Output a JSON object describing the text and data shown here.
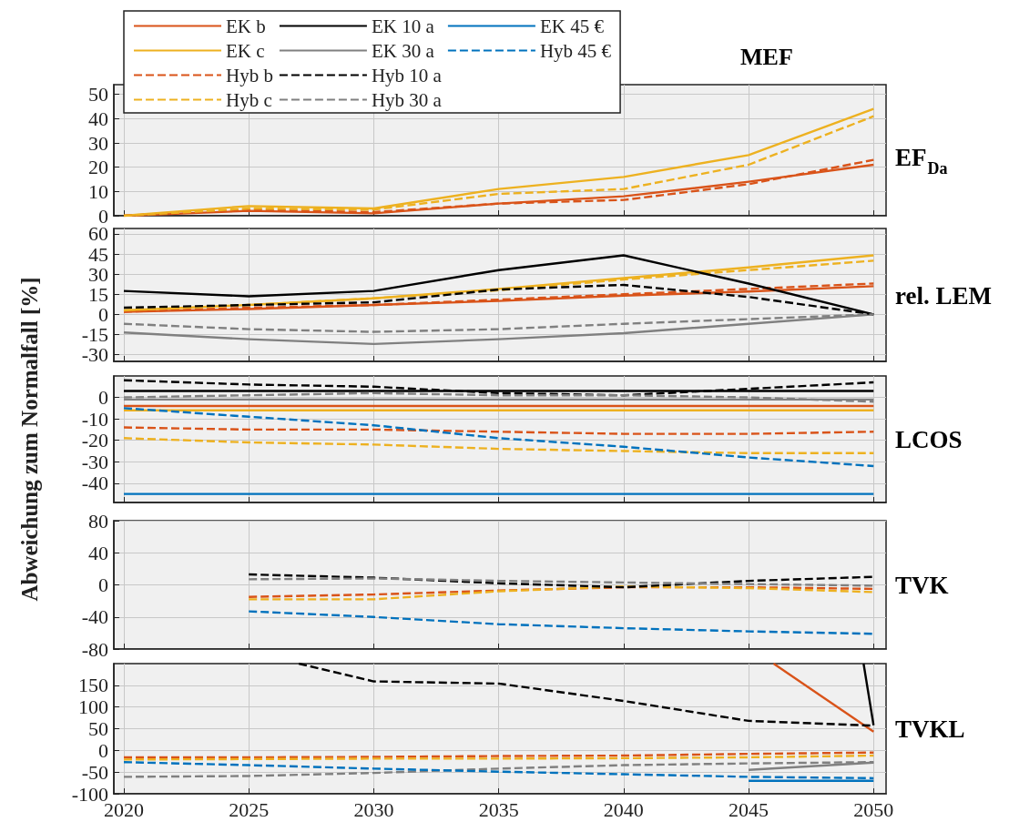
{
  "chart_data": [
    {
      "type": "line",
      "title": "EF$_{Da}$",
      "annotations": [
        "MEF"
      ],
      "x": [
        2020,
        2025,
        2030,
        2035,
        2040,
        2045,
        2050
      ],
      "xlim": [
        2019.6,
        2050.5
      ],
      "xticks": [
        2020,
        2025,
        2030,
        2035,
        2040,
        2045,
        2050
      ],
      "ylim": [
        0,
        54
      ],
      "yticks": [
        0,
        10,
        20,
        30,
        40,
        50
      ],
      "grid": true,
      "legend": "top left",
      "tick_labels": "y",
      "series": [
        {
          "name": "EK b",
          "color": "#d95319",
          "line_style": "solid",
          "values": [
            0,
            2,
            1,
            5,
            8,
            14,
            21
          ]
        },
        {
          "name": "EK c",
          "color": "#edb120",
          "line_style": "solid",
          "values": [
            0,
            4,
            3,
            11,
            16,
            25,
            44
          ]
        },
        {
          "name": "Hyb b",
          "color": "#d95319",
          "line_style": "dashed",
          "values": [
            0,
            2.5,
            1.5,
            5,
            6.5,
            13,
            23
          ]
        },
        {
          "name": "Hyb c",
          "color": "#edb120",
          "line_style": "dashed",
          "values": [
            0,
            3,
            2.5,
            9,
            11,
            21,
            41
          ]
        },
        {
          "name": "EK 10 a",
          "color": "#000000",
          "line_style": "solid",
          "values": [
            null,
            null,
            null,
            null,
            null,
            null,
            null
          ]
        },
        {
          "name": "EK 30 a",
          "color": "#808080",
          "line_style": "solid",
          "values": [
            null,
            null,
            null,
            null,
            null,
            null,
            null
          ]
        },
        {
          "name": "Hyb 10 a",
          "color": "#000000",
          "line_style": "dashed",
          "values": [
            null,
            null,
            null,
            null,
            null,
            null,
            null
          ]
        },
        {
          "name": "Hyb 30 a",
          "color": "#808080",
          "line_style": "dashed",
          "values": [
            null,
            null,
            null,
            null,
            null,
            null,
            null
          ]
        },
        {
          "name": "EK 45 €",
          "color": "#0072bd",
          "line_style": "solid",
          "values": [
            null,
            null,
            null,
            null,
            null,
            null,
            null
          ]
        },
        {
          "name": "Hyb 45 €",
          "color": "#0072bd",
          "line_style": "dashed",
          "values": [
            null,
            null,
            null,
            null,
            null,
            null,
            null
          ]
        }
      ]
    },
    {
      "type": "line",
      "title": "rel. LEM",
      "x": [
        2020,
        2025,
        2030,
        2035,
        2040,
        2045,
        2050
      ],
      "xlim": [
        2019.6,
        2050.5
      ],
      "xticks": [
        2020,
        2025,
        2030,
        2035,
        2040,
        2045,
        2050
      ],
      "ylim": [
        -35,
        64
      ],
      "yticks": [
        -30,
        -15,
        0,
        15,
        30,
        45,
        60
      ],
      "grid": true,
      "tick_labels": "y",
      "series": [
        {
          "color": "#d95319",
          "line_style": "solid",
          "values": [
            2,
            4,
            7,
            10,
            14,
            17,
            21
          ]
        },
        {
          "color": "#edb120",
          "line_style": "solid",
          "values": [
            3,
            7,
            12,
            19,
            27,
            35,
            44
          ]
        },
        {
          "color": "#d95319",
          "line_style": "dashed",
          "values": [
            2,
            5,
            7,
            11,
            15,
            19,
            23
          ]
        },
        {
          "color": "#edb120",
          "line_style": "dashed",
          "values": [
            3,
            7,
            12,
            18,
            26,
            33,
            40
          ]
        },
        {
          "color": "#000000",
          "line_style": "solid",
          "values": [
            17.5,
            13.5,
            17.5,
            33,
            44,
            23,
            0
          ]
        },
        {
          "color": "#808080",
          "line_style": "solid",
          "values": [
            -13.5,
            -18.5,
            -22,
            -18.5,
            -14,
            -7,
            0
          ]
        },
        {
          "color": "#000000",
          "line_style": "dashed",
          "values": [
            5,
            7,
            9,
            18.5,
            22,
            13,
            0
          ]
        },
        {
          "color": "#808080",
          "line_style": "dashed",
          "values": [
            -7,
            -11,
            -13,
            -11,
            -7,
            -3.5,
            0
          ]
        }
      ]
    },
    {
      "type": "line",
      "title": "LCOS",
      "ylabel": "Abweichung zum Normalfall [%]",
      "x": [
        2020,
        2025,
        2030,
        2035,
        2040,
        2045,
        2050
      ],
      "xlim": [
        2019.6,
        2050.5
      ],
      "xticks": [
        2020,
        2025,
        2030,
        2035,
        2040,
        2045,
        2050
      ],
      "ylim": [
        -49,
        10
      ],
      "yticks": [
        -40,
        -30,
        -20,
        -10,
        0
      ],
      "grid": true,
      "tick_labels": "y",
      "series": [
        {
          "color": "#d95319",
          "line_style": "solid",
          "values": [
            -4,
            -4,
            -4,
            -4,
            -4,
            -4,
            -4
          ]
        },
        {
          "color": "#edb120",
          "line_style": "solid",
          "values": [
            -6,
            -6,
            -6,
            -6,
            -6,
            -6,
            -6
          ]
        },
        {
          "color": "#d95319",
          "line_style": "dashed",
          "values": [
            -14,
            -15,
            -15,
            -16,
            -17,
            -17,
            -16
          ]
        },
        {
          "color": "#edb120",
          "line_style": "dashed",
          "values": [
            -19,
            -21,
            -22,
            -24,
            -25,
            -26,
            -26
          ]
        },
        {
          "color": "#000000",
          "line_style": "solid",
          "values": [
            3,
            3,
            3,
            3,
            3,
            3,
            3
          ]
        },
        {
          "color": "#808080",
          "line_style": "solid",
          "values": [
            -1,
            -1,
            -1,
            -1,
            -1,
            -1,
            -1
          ]
        },
        {
          "color": "#000000",
          "line_style": "dashed",
          "values": [
            8,
            6,
            5,
            2,
            1,
            4,
            7
          ]
        },
        {
          "color": "#808080",
          "line_style": "dashed",
          "values": [
            0,
            1,
            2,
            1,
            1,
            0,
            -2
          ]
        },
        {
          "color": "#0072bd",
          "line_style": "solid",
          "values": [
            -45,
            -45,
            -45,
            -45,
            -45,
            -45,
            -45
          ]
        },
        {
          "color": "#0072bd",
          "line_style": "dashed",
          "values": [
            -5,
            -9,
            -13,
            -19,
            -23,
            -28,
            -32
          ]
        }
      ]
    },
    {
      "type": "line",
      "title": "TVK",
      "x": [
        2025,
        2030,
        2035,
        2040,
        2045,
        2050
      ],
      "xlim": [
        2019.6,
        2050.5
      ],
      "xticks": [
        2020,
        2025,
        2030,
        2035,
        2040,
        2045,
        2050
      ],
      "ylim": [
        -80,
        80
      ],
      "yticks": [
        -80,
        -40,
        0,
        40,
        80
      ],
      "grid": true,
      "tick_labels": "y",
      "series": [
        {
          "color": "#d95319",
          "line_style": "dashed",
          "values": [
            -15,
            -12,
            -7,
            -3,
            -3,
            -5
          ]
        },
        {
          "color": "#edb120",
          "line_style": "dashed",
          "values": [
            -18,
            -18,
            -8,
            -2,
            -4,
            -9
          ]
        },
        {
          "color": "#000000",
          "line_style": "dashed",
          "values": [
            13,
            9,
            2,
            -3,
            5,
            10
          ]
        },
        {
          "color": "#808080",
          "line_style": "dashed",
          "values": [
            7,
            8,
            5,
            3,
            1,
            -1
          ]
        },
        {
          "color": "#0072bd",
          "line_style": "dashed",
          "values": [
            -33,
            -40,
            -49,
            -54,
            -58,
            -61
          ]
        }
      ]
    },
    {
      "type": "line",
      "title": "TVKL",
      "x": [
        2020,
        2025,
        2030,
        2035,
        2040,
        2045,
        2050
      ],
      "xlim": [
        2019.6,
        2050.5
      ],
      "xticks": [
        2020,
        2025,
        2030,
        2035,
        2040,
        2045,
        2050
      ],
      "ylim": [
        -100,
        200
      ],
      "yticks": [
        -100,
        -50,
        0,
        50,
        100,
        150
      ],
      "grid": true,
      "series": [
        {
          "color": "#d95319",
          "line_style": "solid",
          "x": [
            2046,
            2050
          ],
          "values": [
            200,
            43
          ]
        },
        {
          "color": "#d95319",
          "line_style": "dashed",
          "values": [
            -16,
            -16,
            -15,
            -13,
            -12,
            -8,
            -5
          ]
        },
        {
          "color": "#edb120",
          "line_style": "dashed",
          "values": [
            -21,
            -20,
            -19,
            -19,
            -18,
            -16,
            -12
          ]
        },
        {
          "color": "#000000",
          "line_style": "solid",
          "x": [
            2049.6,
            2050
          ],
          "values": [
            200,
            58
          ]
        },
        {
          "color": "#808080",
          "line_style": "solid",
          "x": [
            2045,
            2050
          ],
          "values": [
            -45,
            -28
          ]
        },
        {
          "color": "#000000",
          "line_style": "dashed",
          "x": [
            2027,
            2030,
            2035,
            2040,
            2045,
            2050
          ],
          "values": [
            200,
            159,
            154,
            114,
            68,
            57
          ]
        },
        {
          "color": "#808080",
          "line_style": "dashed",
          "values": [
            -61,
            -59,
            -52,
            -42,
            -34,
            -30,
            -27
          ]
        },
        {
          "color": "#0072bd",
          "line_style": "solid",
          "x": [
            2045,
            2050
          ],
          "values": [
            -70,
            -70
          ]
        },
        {
          "color": "#0072bd",
          "line_style": "dashed",
          "values": [
            -27,
            -34,
            -42,
            -49,
            -55,
            -61,
            -64
          ]
        }
      ]
    }
  ]
}
